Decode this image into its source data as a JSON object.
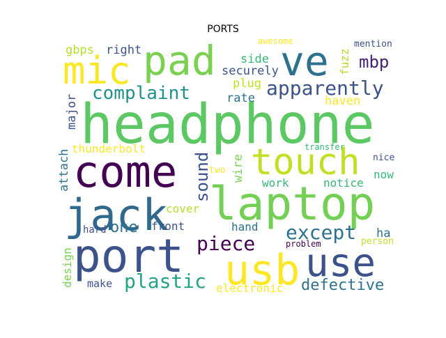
{
  "chart_data": {
    "type": "wordcloud",
    "title": "PORTS",
    "words": [
      {
        "text": "headphone",
        "weight": 1.0,
        "color": "#5cc863"
      },
      {
        "text": "laptop",
        "weight": 0.82,
        "color": "#73d055"
      },
      {
        "text": "come",
        "weight": 0.78,
        "color": "#440154"
      },
      {
        "text": "port",
        "weight": 0.75,
        "color": "#3b528b"
      },
      {
        "text": "touch",
        "weight": 0.7,
        "color": "#c2df23"
      },
      {
        "text": "jack",
        "weight": 0.7,
        "color": "#31688e"
      },
      {
        "text": "use",
        "weight": 0.68,
        "color": "#3b528b"
      },
      {
        "text": "usb",
        "weight": 0.66,
        "color": "#fde725"
      },
      {
        "text": "pad",
        "weight": 0.62,
        "color": "#7ad151"
      },
      {
        "text": "ve",
        "weight": 0.62,
        "color": "#2c728e"
      },
      {
        "text": "mic",
        "weight": 0.6,
        "color": "#fde725"
      },
      {
        "text": "apparently",
        "weight": 0.36,
        "color": "#3b528b"
      },
      {
        "text": "except",
        "weight": 0.35,
        "color": "#2c728e"
      },
      {
        "text": "piece",
        "weight": 0.35,
        "color": "#440154"
      },
      {
        "text": "plastic",
        "weight": 0.35,
        "color": "#20a386"
      },
      {
        "text": "complaint",
        "weight": 0.33,
        "color": "#21918c"
      },
      {
        "text": "sound",
        "weight": 0.3,
        "color": "#3b528b"
      },
      {
        "text": "mbp",
        "weight": 0.3,
        "color": "#481f70"
      },
      {
        "text": "defective",
        "weight": 0.28,
        "color": "#2c728e"
      },
      {
        "text": "one",
        "weight": 0.28,
        "color": "#2c728e"
      },
      {
        "text": "securely",
        "weight": 0.22,
        "color": "#3b528b"
      },
      {
        "text": "side",
        "weight": 0.22,
        "color": "#35b779"
      },
      {
        "text": "gbps",
        "weight": 0.2,
        "color": "#b5de2b"
      },
      {
        "text": "right",
        "weight": 0.2,
        "color": "#3b528b"
      },
      {
        "text": "major",
        "weight": 0.2,
        "color": "#3b528b"
      },
      {
        "text": "thunderbolt",
        "weight": 0.2,
        "color": "#fde725"
      },
      {
        "text": "attach",
        "weight": 0.2,
        "color": "#2c728e"
      },
      {
        "text": "design",
        "weight": 0.2,
        "color": "#7ad151"
      },
      {
        "text": "cover",
        "weight": 0.2,
        "color": "#b5de2b"
      },
      {
        "text": "front",
        "weight": 0.2,
        "color": "#3b528b"
      },
      {
        "text": "plug",
        "weight": 0.2,
        "color": "#c2df23"
      },
      {
        "text": "rate",
        "weight": 0.2,
        "color": "#2c728e"
      },
      {
        "text": "haven",
        "weight": 0.2,
        "color": "#fde725"
      },
      {
        "text": "fuzz",
        "weight": 0.2,
        "color": "#b5de2b"
      },
      {
        "text": "wire",
        "weight": 0.2,
        "color": "#7ad151"
      },
      {
        "text": "work",
        "weight": 0.2,
        "color": "#35b779"
      },
      {
        "text": "notice",
        "weight": 0.2,
        "color": "#35b779"
      },
      {
        "text": "now",
        "weight": 0.2,
        "color": "#35b779"
      },
      {
        "text": "hand",
        "weight": 0.2,
        "color": "#2c728e"
      },
      {
        "text": "electronic",
        "weight": 0.2,
        "color": "#fde725"
      },
      {
        "text": "ha",
        "weight": 0.2,
        "color": "#2c728e"
      },
      {
        "text": "make",
        "weight": 0.18,
        "color": "#3b528b"
      },
      {
        "text": "hard",
        "weight": 0.15,
        "color": "#3b528b"
      },
      {
        "text": "two",
        "weight": 0.15,
        "color": "#fde725"
      },
      {
        "text": "nice",
        "weight": 0.15,
        "color": "#3b528b"
      },
      {
        "text": "mention",
        "weight": 0.14,
        "color": "#3b528b"
      },
      {
        "text": "person",
        "weight": 0.13,
        "color": "#c2df23"
      },
      {
        "text": "awesome",
        "weight": 0.12,
        "color": "#fde725"
      },
      {
        "text": "transfer",
        "weight": 0.12,
        "color": "#35b779"
      },
      {
        "text": "problem",
        "weight": 0.12,
        "color": "#440154"
      }
    ]
  }
}
